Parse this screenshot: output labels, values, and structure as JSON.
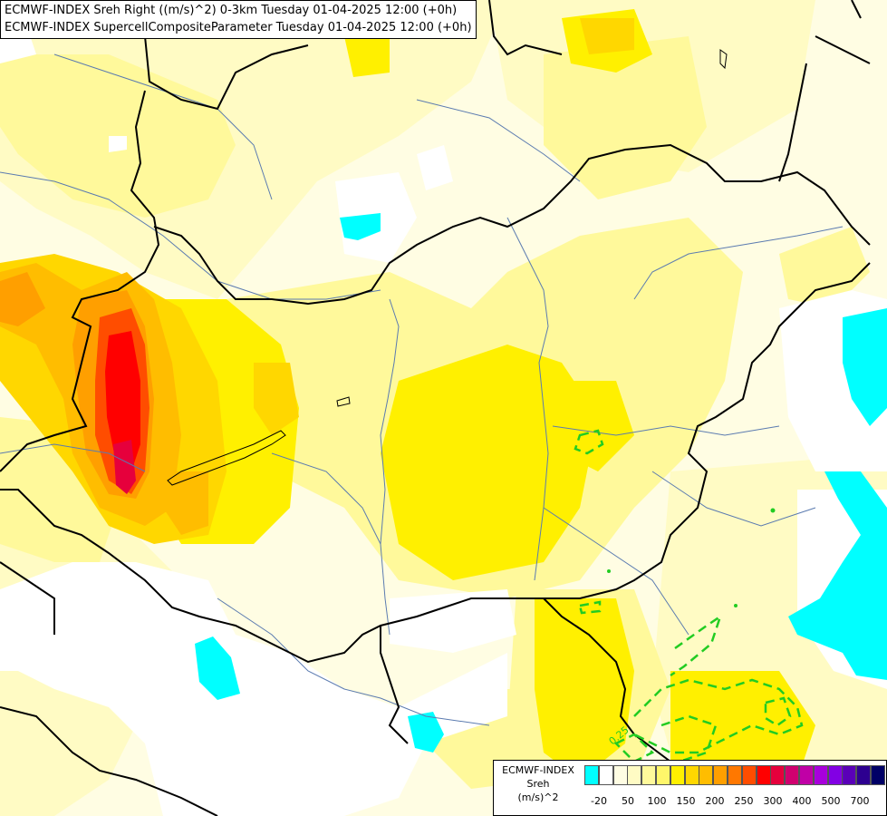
{
  "titles": [
    "ECMWF-INDEX Sreh Right ((m/s)^2) 0-3km Tuesday 01-04-2025 12:00 (+0h)",
    "ECMWF-INDEX SupercellCompositeParameter Tuesday 01-04-2025 12:00 (+0h)"
  ],
  "contour_label": "0.25",
  "legend": {
    "line1": "ECMWF-INDEX",
    "line2": "Sreh",
    "line3": "(m/s)^2",
    "colors": [
      "#00ffff",
      "#ffffff",
      "#fffde3",
      "#fffbc4",
      "#fff99b",
      "#fff66a",
      "#fff000",
      "#ffd700",
      "#ffbd00",
      "#ff9f00",
      "#ff7800",
      "#ff4d00",
      "#ff0000",
      "#e6003c",
      "#d0006f",
      "#c000a6",
      "#a800dc",
      "#8200e4",
      "#5a00b8",
      "#2d0090",
      "#000066"
    ],
    "ticks": [
      "-20",
      "50",
      "100",
      "150",
      "200",
      "250",
      "300",
      "400",
      "500",
      "700"
    ]
  }
}
